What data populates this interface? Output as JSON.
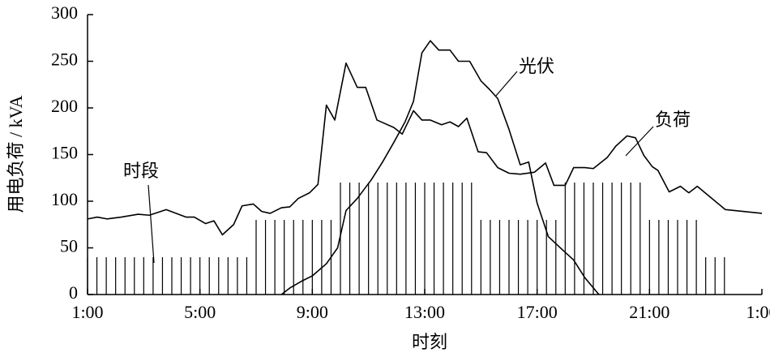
{
  "chart_data": {
    "type": "line",
    "x_label": "时刻",
    "y_label": "用电负荷 / kVA",
    "xlim": [
      1,
      25
    ],
    "xticks": [
      {
        "value": 1,
        "label": "1:00"
      },
      {
        "value": 5,
        "label": "5:00"
      },
      {
        "value": 9,
        "label": "9:00"
      },
      {
        "value": 13,
        "label": "13:00"
      },
      {
        "value": 17,
        "label": "17:00"
      },
      {
        "value": 21,
        "label": "21:00"
      },
      {
        "value": 25,
        "label": "1:00"
      }
    ],
    "ylim": [
      0,
      300
    ],
    "yticks": [
      0,
      50,
      100,
      150,
      200,
      250,
      300
    ],
    "series": [
      {
        "name": "负荷",
        "color": "#000000",
        "x": [
          1,
          1.35,
          1.7,
          2.2,
          2.8,
          3.2,
          3.8,
          4.5,
          4.8,
          5.2,
          5.5,
          5.8,
          6.2,
          6.5,
          6.9,
          7.2,
          7.5,
          7.9,
          8.2,
          8.5,
          8.9,
          9.2,
          9.5,
          9.8,
          10.2,
          10.6,
          10.9,
          11.3,
          11.6,
          11.9,
          12.2,
          12.6,
          12.9,
          13.2,
          13.6,
          13.9,
          14.2,
          14.5,
          14.9,
          15.2,
          15.6,
          16.0,
          16.4,
          16.9,
          17.3,
          17.6,
          18.0,
          18.3,
          18.7,
          19.0,
          19.5,
          19.8,
          20.2,
          20.5,
          20.8,
          21.1,
          21.3,
          21.7,
          22.1,
          22.4,
          22.7,
          23.1,
          23.7,
          25
        ],
        "values": [
          81,
          83,
          81,
          83,
          86,
          85,
          91,
          83,
          83,
          76,
          79,
          64,
          75,
          95,
          97,
          89,
          87,
          93,
          94,
          103,
          109,
          118,
          203,
          187,
          248,
          222,
          222,
          187,
          183,
          179,
          172,
          197,
          187,
          187,
          182,
          185,
          180,
          189,
          153,
          152,
          136,
          130,
          129,
          131,
          141,
          117,
          117,
          136,
          136,
          135,
          147,
          159,
          170,
          168,
          149,
          137,
          133,
          110,
          116,
          109,
          116,
          106,
          91,
          87
        ]
      },
      {
        "name": "光伏",
        "color": "#000000",
        "x": [
          7.9,
          8.2,
          8.6,
          9.0,
          9.5,
          9.9,
          10.2,
          10.6,
          11.1,
          11.5,
          11.9,
          12.3,
          12.6,
          12.9,
          13.2,
          13.5,
          13.9,
          14.2,
          14.6,
          15.0,
          15.3,
          15.6,
          16.0,
          16.4,
          16.7,
          17.0,
          17.4,
          17.9,
          18.3,
          18.7,
          19.2
        ],
        "values": [
          0,
          7,
          14,
          20,
          33,
          50,
          90,
          103,
          123,
          142,
          163,
          185,
          207,
          259,
          272,
          262,
          262,
          250,
          250,
          229,
          220,
          210,
          177,
          139,
          142,
          98,
          62,
          48,
          37,
          18,
          0
        ]
      }
    ],
    "periods": {
      "name": "时段",
      "color": "#000000",
      "segments": [
        {
          "start": 1,
          "end": 7,
          "value": 40
        },
        {
          "start": 7,
          "end": 10,
          "value": 80
        },
        {
          "start": 10,
          "end": 15,
          "value": 120
        },
        {
          "start": 15,
          "end": 18,
          "value": 80
        },
        {
          "start": 18,
          "end": 21,
          "value": 120
        },
        {
          "start": 21,
          "end": 23,
          "value": 80
        },
        {
          "start": 23,
          "end": 24,
          "value": 40
        }
      ]
    }
  }
}
